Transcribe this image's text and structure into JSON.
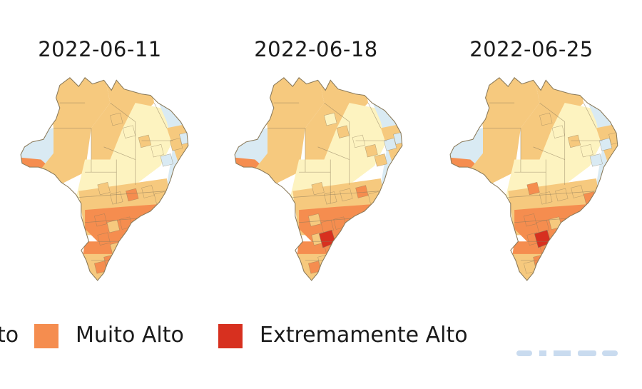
{
  "panels": [
    {
      "date": "2022-06-11",
      "variant": 1
    },
    {
      "date": "2022-06-18",
      "variant": 2
    },
    {
      "date": "2022-06-25",
      "variant": 3
    }
  ],
  "legend": {
    "items": [
      {
        "label": "to",
        "color": "#f3bf73"
      },
      {
        "label": "Muito Alto",
        "color": "#f58d4f"
      },
      {
        "label": "Extremamente Alto",
        "color": "#d7301f"
      }
    ]
  },
  "colors": {
    "baixo": "#d9eaf3",
    "medio": "#fdf3c0",
    "alto": "#f6c97e",
    "muito_alto": "#f58d4f",
    "extremamente_alto": "#d7301f",
    "border": "#8a7a5a"
  }
}
